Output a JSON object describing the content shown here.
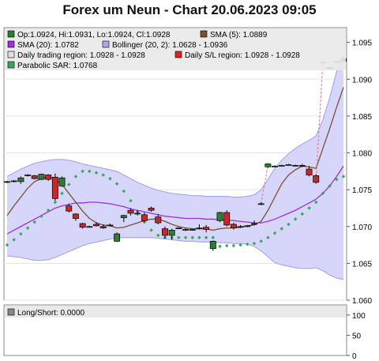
{
  "title": "Forex um Neun - Chart 20.06.2023 09:05",
  "legend": {
    "ohlc": "Op:1.0924, Hi:1.0931, Lo:1.0924, Cl:1.0928",
    "sma5": "SMA (5): 1.0889",
    "sma20": "SMA (20): 1.0782",
    "bollinger": "Bollinger (20, 2): 1.0628 - 1.0936",
    "trading_region": "Daily trading region: 1.0928 - 1.0928",
    "sl_region": "Daily S/L region: 1.0928 - 1.0928",
    "sar": "Parabolic SAR: 1.0768",
    "long_short": "Long/Short: 0.0000"
  },
  "colors": {
    "up": "#2e7d32",
    "down": "#c62828",
    "sma5": "#7a5230",
    "sma20": "#9b30d9",
    "bollinger_fill": "#d6d6fa",
    "bollinger_line": "#9c9cf0",
    "sar": "#3aa85a",
    "trading_region": "#e0e0e0",
    "sl_region": "#dd2222",
    "long_short": "#888888"
  },
  "chart_data": [
    {
      "type": "candlestick",
      "ylim": [
        1.06,
        1.097
      ],
      "y_ticks": [
        "1.095",
        "1.090",
        "1.085",
        "1.080",
        "1.075",
        "1.070",
        "1.065",
        "1.060"
      ],
      "candles": [
        {
          "o": 1.076,
          "h": 1.0762,
          "l": 1.0759,
          "c": 1.0761
        },
        {
          "o": 1.0762,
          "h": 1.0763,
          "l": 1.076,
          "c": 1.0761
        },
        {
          "o": 1.0761,
          "h": 1.0768,
          "l": 1.0758,
          "c": 1.0766
        },
        {
          "o": 1.077,
          "h": 1.0771,
          "l": 1.0768,
          "c": 1.0769
        },
        {
          "o": 1.0769,
          "h": 1.077,
          "l": 1.0764,
          "c": 1.0765
        },
        {
          "o": 1.0764,
          "h": 1.0772,
          "l": 1.0763,
          "c": 1.0771
        },
        {
          "o": 1.077,
          "h": 1.0771,
          "l": 1.0762,
          "c": 1.0764
        },
        {
          "o": 1.0767,
          "h": 1.0772,
          "l": 1.0735,
          "c": 1.0738
        },
        {
          "o": 1.0755,
          "h": 1.0768,
          "l": 1.0754,
          "c": 1.0766
        },
        {
          "o": 1.0728,
          "h": 1.0731,
          "l": 1.0719,
          "c": 1.0721
        },
        {
          "o": 1.0717,
          "h": 1.0718,
          "l": 1.0708,
          "c": 1.0711
        },
        {
          "o": 1.0704,
          "h": 1.0705,
          "l": 1.0697,
          "c": 1.0699
        },
        {
          "o": 1.07,
          "h": 1.0701,
          "l": 1.0699,
          "c": 1.07
        },
        {
          "o": 1.0703,
          "h": 1.0706,
          "l": 1.07,
          "c": 1.0701
        },
        {
          "o": 1.07,
          "h": 1.0703,
          "l": 1.0697,
          "c": 1.0698
        },
        {
          "o": 1.0702,
          "h": 1.0704,
          "l": 1.07,
          "c": 1.0701
        },
        {
          "o": 1.068,
          "h": 1.0692,
          "l": 1.0679,
          "c": 1.069
        },
        {
          "o": 1.0712,
          "h": 1.0716,
          "l": 1.0706,
          "c": 1.0715
        },
        {
          "o": 1.0722,
          "h": 1.0725,
          "l": 1.0715,
          "c": 1.0718
        },
        {
          "o": 1.0717,
          "h": 1.0722,
          "l": 1.0715,
          "c": 1.0718
        },
        {
          "o": 1.0716,
          "h": 1.0719,
          "l": 1.0706,
          "c": 1.0708
        },
        {
          "o": 1.0725,
          "h": 1.0727,
          "l": 1.072,
          "c": 1.0722
        },
        {
          "o": 1.0713,
          "h": 1.0717,
          "l": 1.0703,
          "c": 1.0705
        },
        {
          "o": 1.0697,
          "h": 1.07,
          "l": 1.0684,
          "c": 1.0688
        },
        {
          "o": 1.0688,
          "h": 1.0697,
          "l": 1.0682,
          "c": 1.0695
        },
        {
          "o": 1.0698,
          "h": 1.0699,
          "l": 1.0697,
          "c": 1.0698
        },
        {
          "o": 1.0696,
          "h": 1.0698,
          "l": 1.0694,
          "c": 1.0695
        },
        {
          "o": 1.0696,
          "h": 1.0697,
          "l": 1.0695,
          "c": 1.0696
        },
        {
          "o": 1.0697,
          "h": 1.0703,
          "l": 1.0696,
          "c": 1.0698
        },
        {
          "o": 1.0699,
          "h": 1.0702,
          "l": 1.0692,
          "c": 1.0696
        },
        {
          "o": 1.067,
          "h": 1.0681,
          "l": 1.0667,
          "c": 1.068
        },
        {
          "o": 1.0708,
          "h": 1.072,
          "l": 1.0706,
          "c": 1.0719
        },
        {
          "o": 1.0719,
          "h": 1.0722,
          "l": 1.07,
          "c": 1.0702
        },
        {
          "o": 1.0703,
          "h": 1.0705,
          "l": 1.0696,
          "c": 1.0698
        },
        {
          "o": 1.07,
          "h": 1.0702,
          "l": 1.0698,
          "c": 1.0699
        },
        {
          "o": 1.07,
          "h": 1.0702,
          "l": 1.0699,
          "c": 1.0701
        },
        {
          "o": 1.0703,
          "h": 1.0708,
          "l": 1.0702,
          "c": 1.0704
        },
        {
          "o": 1.073,
          "h": 1.0733,
          "l": 1.0729,
          "c": 1.0731
        },
        {
          "o": 1.0781,
          "h": 1.0786,
          "l": 1.078,
          "c": 1.0785
        },
        {
          "o": 1.0782,
          "h": 1.0783,
          "l": 1.0781,
          "c": 1.0782
        },
        {
          "o": 1.0783,
          "h": 1.0784,
          "l": 1.0782,
          "c": 1.0783
        },
        {
          "o": 1.0784,
          "h": 1.0785,
          "l": 1.0783,
          "c": 1.0784
        },
        {
          "o": 1.0783,
          "h": 1.0784,
          "l": 1.0782,
          "c": 1.0783
        },
        {
          "o": 1.0783,
          "h": 1.0785,
          "l": 1.0781,
          "c": 1.0782
        },
        {
          "o": 1.0778,
          "h": 1.0782,
          "l": 1.0768,
          "c": 1.077
        },
        {
          "o": 1.0769,
          "h": 1.0771,
          "l": 1.0758,
          "c": 1.076
        },
        {
          "o": 1.0923,
          "h": 1.0925,
          "l": 1.0922,
          "c": 1.0923
        },
        {
          "o": 1.0914,
          "h": 1.0917,
          "l": 1.0913,
          "c": 1.0916
        },
        {
          "o": 1.0923,
          "h": 1.0925,
          "l": 1.0922,
          "c": 1.0924
        },
        {
          "o": 1.0924,
          "h": 1.0931,
          "l": 1.0924,
          "c": 1.0928
        }
      ],
      "sma5": [
        1.0715,
        1.0728,
        1.074,
        1.0752,
        1.0761,
        1.0765,
        1.0768,
        1.0764,
        1.0757,
        1.0745,
        1.0733,
        1.0721,
        1.0711,
        1.0705,
        1.0702,
        1.0701,
        1.0698,
        1.0699,
        1.0702,
        1.0705,
        1.0708,
        1.071,
        1.071,
        1.0707,
        1.0703,
        1.07,
        1.0698,
        1.0697,
        1.0697,
        1.0697,
        1.0695,
        1.0697,
        1.0698,
        1.0698,
        1.0699,
        1.0701,
        1.0702,
        1.0707,
        1.0722,
        1.074,
        1.0758,
        1.077,
        1.0777,
        1.0782,
        1.0781,
        1.0779,
        1.0806,
        1.0833,
        1.0862,
        1.0889
      ],
      "sma20": [
        1.069,
        1.0695,
        1.07,
        1.0705,
        1.071,
        1.0715,
        1.072,
        1.0725,
        1.0728,
        1.073,
        1.0732,
        1.0732,
        1.0733,
        1.0733,
        1.0732,
        1.0731,
        1.0729,
        1.0727,
        1.0724,
        1.0722,
        1.072,
        1.0718,
        1.0716,
        1.0714,
        1.0713,
        1.0712,
        1.0711,
        1.0711,
        1.0711,
        1.071,
        1.071,
        1.0709,
        1.0709,
        1.0708,
        1.0707,
        1.0706,
        1.0705,
        1.0705,
        1.0707,
        1.071,
        1.0714,
        1.0718,
        1.0722,
        1.0727,
        1.0732,
        1.0737,
        1.0745,
        1.0755,
        1.0768,
        1.0782
      ],
      "bb_upper": [
        1.0768,
        1.0773,
        1.0778,
        1.0782,
        1.0786,
        1.0788,
        1.079,
        1.0791,
        1.0791,
        1.079,
        1.0788,
        1.0785,
        1.0783,
        1.0781,
        1.0779,
        1.0777,
        1.0775,
        1.077,
        1.0765,
        1.076,
        1.0756,
        1.0752,
        1.0749,
        1.0747,
        1.0745,
        1.0744,
        1.0743,
        1.0742,
        1.0742,
        1.0741,
        1.0741,
        1.0741,
        1.0741,
        1.074,
        1.074,
        1.0741,
        1.0743,
        1.075,
        1.0764,
        1.0779,
        1.079,
        1.0799,
        1.0806,
        1.0812,
        1.0817,
        1.0823,
        1.0845,
        1.0875,
        1.091,
        1.0936
      ],
      "bb_lower": [
        1.066,
        1.0659,
        1.0658,
        1.0656,
        1.0654,
        1.0654,
        1.0655,
        1.0658,
        1.0662,
        1.0666,
        1.067,
        1.0674,
        1.0677,
        1.0679,
        1.0681,
        1.0683,
        1.0685,
        1.0685,
        1.0685,
        1.0685,
        1.0685,
        1.0685,
        1.0684,
        1.0683,
        1.0682,
        1.0681,
        1.068,
        1.068,
        1.0679,
        1.0679,
        1.0679,
        1.0678,
        1.0678,
        1.0677,
        1.0677,
        1.0676,
        1.0673,
        1.0667,
        1.0659,
        1.0651,
        1.0648,
        1.0646,
        1.0644,
        1.0643,
        1.0643,
        1.0644,
        1.064,
        1.0634,
        1.063,
        1.0628
      ],
      "sar": [
        1.0675,
        1.0682,
        1.069,
        1.0698,
        1.0706,
        1.0714,
        1.0722,
        1.0733,
        1.0745,
        1.0757,
        1.0768,
        1.0775,
        1.0775,
        1.0773,
        1.077,
        1.0765,
        1.0758,
        1.0748,
        1.0735,
        1.072,
        1.0706,
        1.0695,
        1.0688,
        1.0685,
        1.0685,
        1.0685,
        1.0685,
        1.0685,
        1.0685,
        1.0685,
        1.0685,
        1.0673,
        1.0674,
        1.0674,
        1.0675,
        1.0676,
        1.0677,
        1.068,
        1.0685,
        1.0691,
        1.0697,
        1.0703,
        1.071,
        1.0717,
        1.0725,
        1.0733,
        1.0745,
        1.0755,
        1.0764,
        1.0768
      ],
      "sl_line": [
        null,
        null,
        null,
        null,
        null,
        null,
        null,
        null,
        null,
        null,
        null,
        null,
        null,
        null,
        null,
        null,
        null,
        null,
        null,
        null,
        null,
        null,
        null,
        null,
        null,
        null,
        null,
        null,
        null,
        null,
        null,
        null,
        null,
        null,
        null,
        null,
        null,
        1.0731,
        1.0783,
        null,
        null,
        null,
        null,
        null,
        null,
        1.0762,
        1.0923,
        null,
        null,
        null
      ]
    },
    {
      "type": "line",
      "title": "Long/Short",
      "ylim": [
        0,
        125
      ],
      "y_ticks": [
        "100",
        "50",
        "0"
      ],
      "values": []
    }
  ]
}
